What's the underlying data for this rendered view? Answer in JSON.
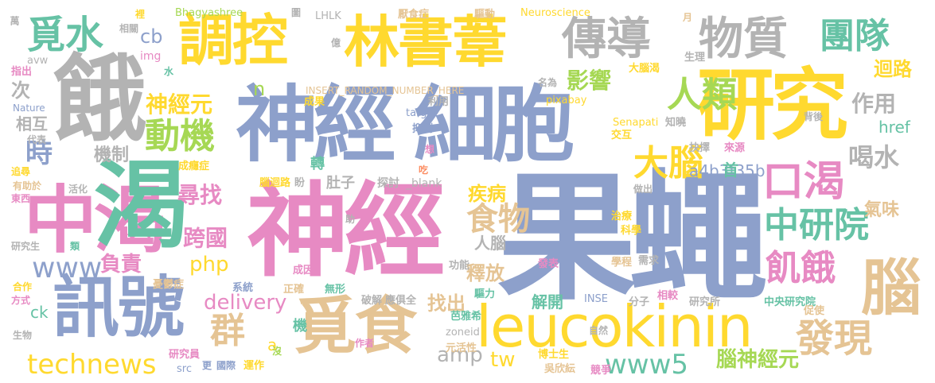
{
  "palette": {
    "blue": "#8DA0CB",
    "gold": "#FFD92F",
    "tan": "#E5C494",
    "gray": "#B3B3B3",
    "green": "#66C2A5",
    "pink": "#E78AC3",
    "orange": "#FC8D62",
    "lime": "#A6D854"
  },
  "words": [
    {
      "text": "果蠅",
      "color": "blue"
    },
    {
      "text": "神經",
      "color": "pink"
    },
    {
      "text": "神經",
      "color": "blue"
    },
    {
      "text": "細胞",
      "color": "blue"
    },
    {
      "text": "餓",
      "color": "gray"
    },
    {
      "text": "中渴",
      "color": "pink"
    },
    {
      "text": "渴",
      "color": "green"
    },
    {
      "text": "研究",
      "color": "gold"
    },
    {
      "text": "leucokinin",
      "color": "gold"
    },
    {
      "text": "訊號",
      "color": "blue"
    },
    {
      "text": "覓食",
      "color": "tan"
    },
    {
      "text": "調控",
      "color": "gold"
    },
    {
      "text": "林書葦",
      "color": "gold"
    },
    {
      "text": "傳導",
      "color": "gray"
    },
    {
      "text": "物質",
      "color": "gray"
    },
    {
      "text": "團隊",
      "color": "green"
    },
    {
      "text": "覓水",
      "color": "green"
    },
    {
      "text": "腦",
      "color": "tan"
    },
    {
      "text": "口渴",
      "color": "pink"
    },
    {
      "text": "中研院",
      "color": "green"
    },
    {
      "text": "發現",
      "color": "tan"
    },
    {
      "text": "飢餓",
      "color": "pink"
    },
    {
      "text": "大腦",
      "color": "gold"
    },
    {
      "text": "動機",
      "color": "lime"
    },
    {
      "text": "人類",
      "color": "lime"
    },
    {
      "text": "食物",
      "color": "tan"
    },
    {
      "text": "群",
      "color": "tan"
    },
    {
      "text": "technews",
      "color": "gold"
    },
    {
      "text": "www5",
      "color": "green"
    },
    {
      "text": "www",
      "color": "blue"
    },
    {
      "text": "影響",
      "color": "lime"
    },
    {
      "text": "神經元",
      "color": "gold"
    },
    {
      "text": "尋找",
      "color": "pink"
    },
    {
      "text": "跨國",
      "color": "pink"
    },
    {
      "text": "delivery",
      "color": "pink"
    },
    {
      "text": "時",
      "color": "blue"
    },
    {
      "text": "喝水",
      "color": "gray"
    },
    {
      "text": "作用",
      "color": "gray"
    },
    {
      "text": "迴路",
      "color": "gold"
    },
    {
      "text": "a4b3f35b",
      "color": "blue"
    },
    {
      "text": "腦神經元",
      "color": "lime"
    },
    {
      "text": "amp",
      "color": "gray"
    },
    {
      "text": "tw",
      "color": "gold"
    },
    {
      "text": "找出",
      "color": "tan"
    },
    {
      "text": "釋放",
      "color": "tan"
    },
    {
      "text": "負責",
      "color": "pink"
    },
    {
      "text": "php",
      "color": "gold"
    },
    {
      "text": "疾病",
      "color": "gold"
    },
    {
      "text": "氣味",
      "color": "tan"
    },
    {
      "text": "機制",
      "color": "gray"
    },
    {
      "text": "href",
      "color": "green"
    },
    {
      "text": "cb",
      "color": "blue"
    },
    {
      "text": "次",
      "color": "gray"
    },
    {
      "text": "n",
      "color": "lime"
    },
    {
      "text": "解開",
      "color": "green"
    },
    {
      "text": "人腦",
      "color": "gray"
    },
    {
      "text": "首",
      "color": "green"
    },
    {
      "text": "肚子",
      "color": "gray"
    },
    {
      "text": "轉",
      "color": "green"
    },
    {
      "text": "ck",
      "color": "green"
    },
    {
      "text": "相互",
      "color": "gray"
    },
    {
      "text": "機",
      "color": "green"
    },
    {
      "text": "a",
      "color": "gold"
    },
    {
      "text": "Bhagyashree",
      "color": "lime"
    },
    {
      "text": "LHLK",
      "color": "gray"
    },
    {
      "text": "Neuroscience",
      "color": "gold"
    },
    {
      "text": "INSERT_RANDOM_NUMBER_HERE",
      "color": "tan"
    },
    {
      "text": "探討",
      "color": "gray"
    },
    {
      "text": "_blank",
      "color": "gray"
    },
    {
      "text": "zoneid",
      "color": "gray"
    },
    {
      "text": "pixabay",
      "color": "gold"
    },
    {
      "text": "Senapati",
      "color": "gold"
    },
    {
      "text": "中央研究院",
      "color": "green"
    },
    {
      "text": "研究所",
      "color": "gray"
    },
    {
      "text": "Nature",
      "color": "blue"
    },
    {
      "text": "target",
      "color": "blue"
    },
    {
      "text": "img",
      "color": "pink"
    },
    {
      "text": "avw",
      "color": "gray"
    },
    {
      "text": "INSE",
      "color": "blue"
    },
    {
      "text": "src",
      "color": "blue"
    },
    {
      "text": "厭食症",
      "color": "tan"
    },
    {
      "text": "驅動",
      "color": "tan"
    },
    {
      "text": "相關",
      "color": "gray"
    },
    {
      "text": "萬",
      "color": "gray"
    },
    {
      "text": "圖",
      "color": "gray"
    },
    {
      "text": "億",
      "color": "gray"
    },
    {
      "text": "裡",
      "color": "gold"
    },
    {
      "text": "月",
      "color": "tan"
    },
    {
      "text": "生理",
      "color": "gray"
    },
    {
      "text": "大腦渴",
      "color": "gold"
    },
    {
      "text": "名為",
      "color": "gray"
    },
    {
      "text": "利用",
      "color": "gray"
    },
    {
      "text": "成果",
      "color": "gold"
    },
    {
      "text": "知曉",
      "color": "gray"
    },
    {
      "text": "背後",
      "color": "gray"
    },
    {
      "text": "抑制",
      "color": "blue"
    },
    {
      "text": "交互",
      "color": "gold"
    },
    {
      "text": "抉擇",
      "color": "gray"
    },
    {
      "text": "來源",
      "color": "pink"
    },
    {
      "text": "想",
      "color": "pink"
    },
    {
      "text": "吃",
      "color": "orange"
    },
    {
      "text": "成癮症",
      "color": "gold"
    },
    {
      "text": "腦迴路",
      "color": "gold"
    },
    {
      "text": "盼",
      "color": "gray"
    },
    {
      "text": "活化",
      "color": "gray"
    },
    {
      "text": "有助於",
      "color": "tan"
    },
    {
      "text": "東西",
      "color": "pink"
    },
    {
      "text": "追尋",
      "color": "gold"
    },
    {
      "text": "代表",
      "color": "gray"
    },
    {
      "text": "指出",
      "color": "pink"
    },
    {
      "text": "水",
      "color": "green"
    },
    {
      "text": "做出",
      "color": "gray"
    },
    {
      "text": "治療",
      "color": "gold"
    },
    {
      "text": "科學",
      "color": "gold"
    },
    {
      "text": "學程",
      "color": "tan"
    },
    {
      "text": "需求",
      "color": "gray"
    },
    {
      "text": "研究生",
      "color": "gray"
    },
    {
      "text": "合作",
      "color": "gold"
    },
    {
      "text": "方式",
      "color": "pink"
    },
    {
      "text": "生物",
      "color": "gray"
    },
    {
      "text": "類",
      "color": "green"
    },
    {
      "text": "助",
      "color": "gray"
    },
    {
      "text": "憂鬱症",
      "color": "tan"
    },
    {
      "text": "成因",
      "color": "pink"
    },
    {
      "text": "系統",
      "color": "blue"
    },
    {
      "text": "正確",
      "color": "tan"
    },
    {
      "text": "無形",
      "color": "green"
    },
    {
      "text": "破解",
      "color": "gray"
    },
    {
      "text": "應俱全",
      "color": "gray"
    },
    {
      "text": "功能",
      "color": "gray"
    },
    {
      "text": "發表",
      "color": "pink"
    },
    {
      "text": "驅力",
      "color": "green"
    },
    {
      "text": "芭雅希",
      "color": "green"
    },
    {
      "text": "元活性",
      "color": "tan"
    },
    {
      "text": "作者",
      "color": "pink"
    },
    {
      "text": "研究員",
      "color": "pink"
    },
    {
      "text": "更",
      "color": "blue"
    },
    {
      "text": "國際",
      "color": "blue"
    },
    {
      "text": "運作",
      "color": "gold"
    },
    {
      "text": "沒",
      "color": "lime"
    },
    {
      "text": "博士生",
      "color": "gold"
    },
    {
      "text": "吳欣紜",
      "color": "tan"
    },
    {
      "text": "競爭",
      "color": "pink"
    },
    {
      "text": "分子",
      "color": "gray"
    },
    {
      "text": "相較",
      "color": "pink"
    },
    {
      "text": "自然",
      "color": "gray"
    },
    {
      "text": "促使",
      "color": "tan"
    }
  ]
}
